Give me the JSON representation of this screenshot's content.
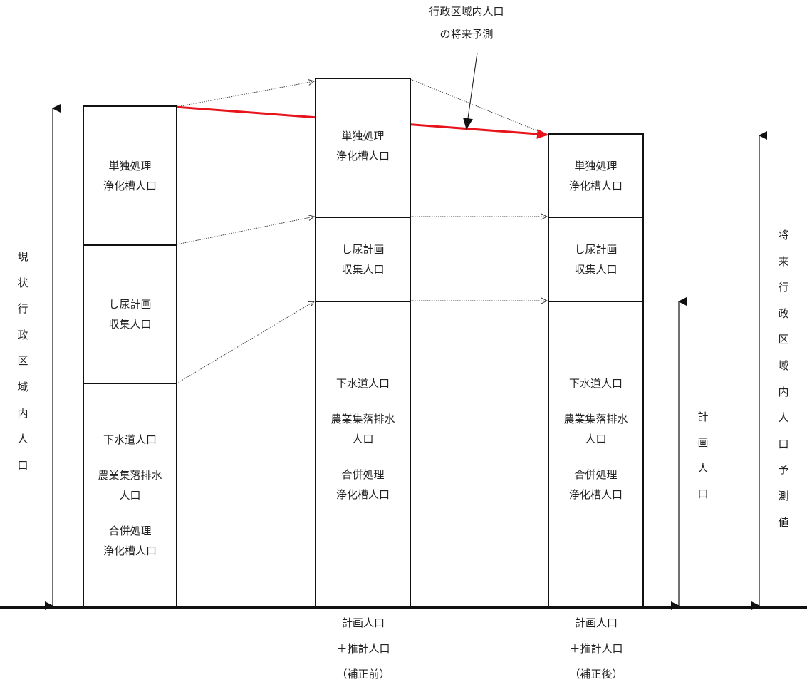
{
  "callout": {
    "line1": "行政区域内人口",
    "line2": "の将来予測"
  },
  "columns": [
    {
      "segments": [
        {
          "lines": [
            "単独処理",
            "浄化槽人口"
          ]
        },
        {
          "lines": [
            "し尿計画",
            "収集人口"
          ]
        },
        {
          "groups": [
            [
              "下水道人口"
            ],
            [
              "農業集落排水",
              "人口"
            ],
            [
              "合併処理",
              "浄化槽人口"
            ]
          ]
        }
      ],
      "bottom": []
    },
    {
      "segments": [
        {
          "lines": [
            "単独処理",
            "浄化槽人口"
          ]
        },
        {
          "lines": [
            "し尿計画",
            "収集人口"
          ]
        },
        {
          "groups": [
            [
              "下水道人口"
            ],
            [
              "農業集落排水",
              "人口"
            ],
            [
              "合併処理",
              "浄化槽人口"
            ]
          ]
        }
      ],
      "bottom": [
        "計画人口",
        "＋推計人口",
        "（補正前）"
      ]
    },
    {
      "segments": [
        {
          "lines": [
            "単独処理",
            "浄化槽人口"
          ]
        },
        {
          "lines": [
            "し尿計画",
            "収集人口"
          ]
        },
        {
          "groups": [
            [
              "下水道人口"
            ],
            [
              "農業集落排水",
              "人口"
            ],
            [
              "合併処理",
              "浄化槽人口"
            ]
          ]
        }
      ],
      "bottom": [
        "計画人口",
        "＋推計人口",
        "（補正後）"
      ]
    }
  ],
  "side_labels": {
    "left": "現状行政区域内人口",
    "plan": "計画人口",
    "right": "将来行政区域内人口予測値"
  },
  "colors": {
    "trend_arrow": "#e8141c",
    "lines": "#111111"
  }
}
